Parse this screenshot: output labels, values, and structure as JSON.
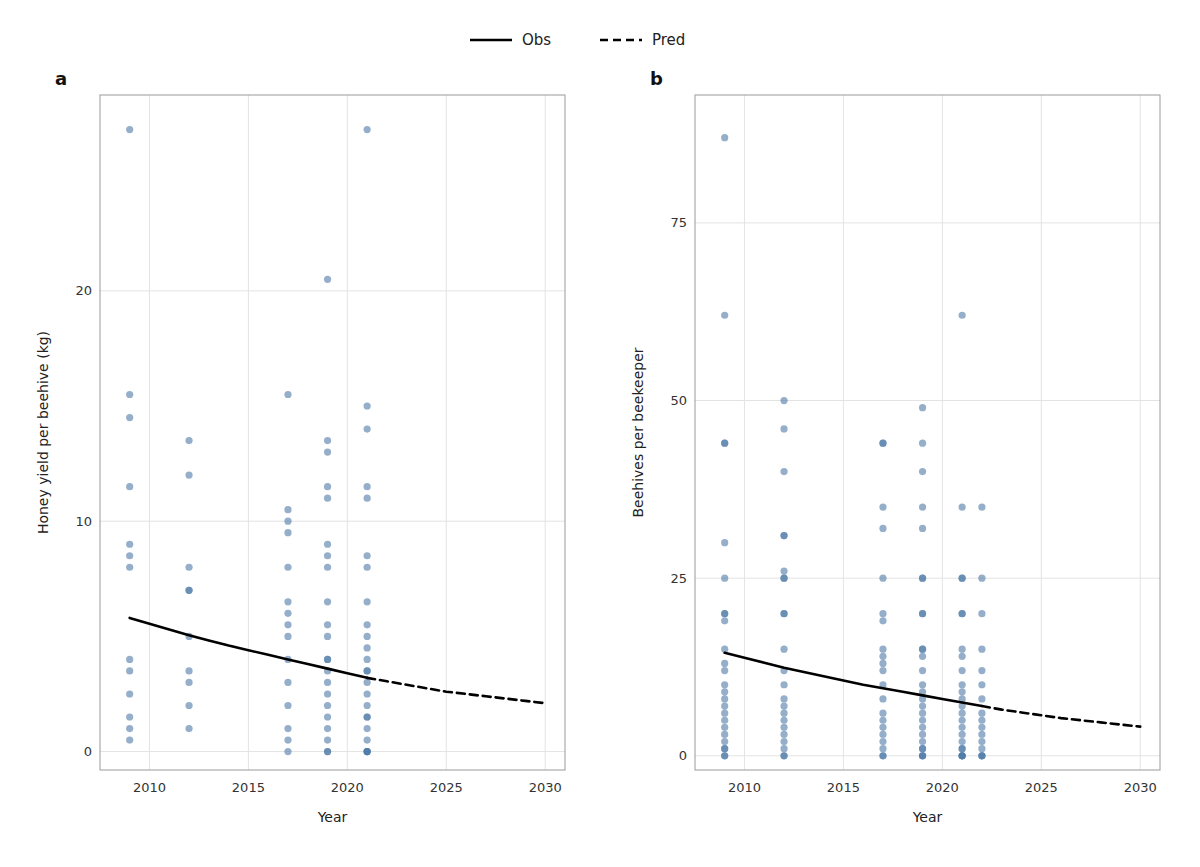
{
  "chart_data": [
    {
      "type": "scatter",
      "title": "a",
      "xlabel": "Year",
      "ylabel": "Honey yield per beehive (kg)",
      "xlim": [
        2007.5,
        2031
      ],
      "ylim": [
        -0.8,
        28.5
      ],
      "xticks": [
        2010,
        2015,
        2020,
        2025,
        2030
      ],
      "yticks": [
        0,
        10,
        20
      ],
      "grid": true,
      "legend": "top",
      "series": [
        {
          "type": "scatter",
          "x": [
            2009,
            2009,
            2009,
            2009,
            2009,
            2009,
            2009,
            2009,
            2009,
            2009,
            2009,
            2009,
            2009
          ],
          "values": [
            27,
            15.5,
            14.5,
            11.5,
            9.0,
            8.5,
            8.0,
            4.0,
            3.5,
            2.5,
            1.5,
            1.0,
            0.5
          ]
        },
        {
          "type": "scatter",
          "x": [
            2012,
            2012,
            2012,
            2012,
            2012,
            2012,
            2012,
            2012,
            2012,
            2012
          ],
          "values": [
            13.5,
            12.0,
            8.0,
            7.0,
            7.0,
            5.0,
            3.5,
            3.0,
            2.0,
            1.0
          ]
        },
        {
          "type": "scatter",
          "x": [
            2017,
            2017,
            2017,
            2017,
            2017,
            2017,
            2017,
            2017,
            2017,
            2017,
            2017,
            2017,
            2017,
            2017,
            2017
          ],
          "values": [
            15.5,
            10.5,
            10.0,
            9.5,
            8.0,
            6.5,
            6.0,
            5.5,
            5.0,
            4.0,
            3.0,
            2.0,
            1.0,
            0.5,
            0.0
          ]
        },
        {
          "type": "scatter",
          "x": [
            2019,
            2019,
            2019,
            2019,
            2019,
            2019,
            2019,
            2019,
            2019,
            2019,
            2019,
            2019,
            2019,
            2019,
            2019,
            2019,
            2019,
            2019,
            2019,
            2019,
            2019,
            2019
          ],
          "values": [
            20.5,
            13.5,
            13.0,
            11.5,
            11.0,
            9.0,
            8.5,
            8.0,
            6.5,
            5.5,
            5.0,
            4.0,
            4.0,
            3.5,
            3.0,
            2.5,
            2.0,
            1.5,
            1.0,
            0.5,
            0.0,
            0.0
          ]
        },
        {
          "type": "scatter",
          "x": [
            2021,
            2021,
            2021,
            2021,
            2021,
            2021,
            2021,
            2021,
            2021,
            2021,
            2021,
            2021,
            2021,
            2021,
            2021,
            2021,
            2021,
            2021,
            2021,
            2021,
            2021,
            2021,
            2021,
            2021,
            2021
          ],
          "values": [
            27.0,
            15.0,
            14.0,
            11.5,
            11.0,
            8.5,
            8.0,
            6.5,
            5.5,
            5.0,
            4.5,
            4.0,
            3.5,
            3.5,
            3.0,
            2.5,
            2.0,
            1.5,
            1.5,
            1.0,
            0.5,
            0.0,
            0.0,
            0.0,
            0.0
          ]
        },
        {
          "type": "line",
          "name": "Obs",
          "color": "#000000",
          "line_style": "solid",
          "x": [
            2009,
            2010,
            2011,
            2012,
            2013,
            2014,
            2015,
            2016,
            2017,
            2018,
            2019,
            2020,
            2021
          ],
          "values": [
            5.8,
            5.55,
            5.3,
            5.05,
            4.82,
            4.6,
            4.4,
            4.2,
            4.0,
            3.8,
            3.6,
            3.4,
            3.2
          ]
        },
        {
          "type": "line",
          "name": "Pred",
          "color": "#000000",
          "line_style": "dashed",
          "x": [
            2021,
            2022,
            2023,
            2024,
            2025,
            2026,
            2027,
            2028,
            2029,
            2030
          ],
          "values": [
            3.2,
            3.05,
            2.9,
            2.75,
            2.6,
            2.5,
            2.4,
            2.3,
            2.2,
            2.1
          ]
        }
      ]
    },
    {
      "type": "scatter",
      "title": "b",
      "xlabel": "Year",
      "ylabel": "Beehives per beekeeper",
      "xlim": [
        2007.5,
        2031
      ],
      "ylim": [
        -2,
        93
      ],
      "xticks": [
        2010,
        2015,
        2020,
        2025,
        2030
      ],
      "yticks": [
        0,
        25,
        50,
        75
      ],
      "grid": true,
      "series": [
        {
          "type": "scatter",
          "x": [
            2009,
            2009,
            2009,
            2009,
            2009,
            2009,
            2009,
            2009,
            2009,
            2009,
            2009,
            2009,
            2009,
            2009,
            2009,
            2009,
            2009,
            2009,
            2009,
            2009,
            2009,
            2009,
            2009,
            2009,
            2009
          ],
          "values": [
            87,
            62,
            44,
            44,
            30,
            25,
            20,
            20,
            19,
            15,
            13,
            12,
            10,
            9,
            8,
            7,
            6,
            5,
            4,
            3,
            2,
            1,
            1,
            0,
            0
          ]
        },
        {
          "type": "scatter",
          "x": [
            2012,
            2012,
            2012,
            2012,
            2012,
            2012,
            2012,
            2012,
            2012,
            2012,
            2012,
            2012,
            2012,
            2012,
            2012,
            2012,
            2012,
            2012,
            2012,
            2012,
            2012,
            2012,
            2012
          ],
          "values": [
            50,
            46,
            40,
            31,
            31,
            26,
            25,
            25,
            20,
            20,
            15,
            12,
            10,
            8,
            7,
            6,
            5,
            4,
            3,
            2,
            1,
            0,
            0
          ]
        },
        {
          "type": "scatter",
          "x": [
            2017,
            2017,
            2017,
            2017,
            2017,
            2017,
            2017,
            2017,
            2017,
            2017,
            2017,
            2017,
            2017,
            2017,
            2017,
            2017,
            2017,
            2017,
            2017,
            2017,
            2017
          ],
          "values": [
            44,
            44,
            35,
            32,
            25,
            20,
            19,
            15,
            14,
            13,
            12,
            10,
            8,
            6,
            5,
            4,
            3,
            2,
            1,
            0,
            0
          ]
        },
        {
          "type": "scatter",
          "x": [
            2019,
            2019,
            2019,
            2019,
            2019,
            2019,
            2019,
            2019,
            2019,
            2019,
            2019,
            2019,
            2019,
            2019,
            2019,
            2019,
            2019,
            2019,
            2019,
            2019,
            2019,
            2019,
            2019,
            2019,
            2019,
            2019,
            2019
          ],
          "values": [
            49,
            44,
            40,
            35,
            32,
            25,
            25,
            20,
            20,
            15,
            15,
            14,
            12,
            10,
            9,
            8,
            7,
            6,
            5,
            4,
            3,
            2,
            1,
            1,
            0,
            0,
            0
          ]
        },
        {
          "type": "scatter",
          "x": [
            2021,
            2021,
            2021,
            2021,
            2021,
            2021,
            2021,
            2021,
            2021,
            2021,
            2021,
            2021,
            2021,
            2021,
            2021,
            2021,
            2021,
            2021,
            2021,
            2021,
            2021,
            2021,
            2021,
            2021
          ],
          "values": [
            62,
            35,
            25,
            25,
            20,
            20,
            15,
            14,
            12,
            10,
            9,
            8,
            7,
            6,
            5,
            4,
            3,
            2,
            1,
            1,
            0,
            0,
            0,
            0
          ]
        },
        {
          "type": "scatter",
          "x": [
            2022,
            2022,
            2022,
            2022,
            2022,
            2022,
            2022,
            2022,
            2022,
            2022,
            2022,
            2022,
            2022,
            2022,
            2022,
            2022
          ],
          "values": [
            35,
            25,
            20,
            15,
            12,
            10,
            8,
            6,
            5,
            4,
            3,
            2,
            1,
            0,
            0,
            0
          ]
        },
        {
          "type": "line",
          "color": "#000000",
          "line_style": "solid",
          "x": [
            2009,
            2010,
            2011,
            2012,
            2013,
            2014,
            2015,
            2016,
            2017,
            2018,
            2019,
            2020,
            2021,
            2022
          ],
          "values": [
            14.5,
            13.8,
            13.1,
            12.4,
            11.8,
            11.2,
            10.6,
            10.0,
            9.5,
            9.0,
            8.5,
            8.0,
            7.5,
            7.0
          ]
        },
        {
          "type": "line",
          "color": "#000000",
          "line_style": "dashed",
          "x": [
            2022,
            2023,
            2024,
            2025,
            2026,
            2027,
            2028,
            2029,
            2030
          ],
          "values": [
            7.0,
            6.5,
            6.1,
            5.7,
            5.3,
            5.0,
            4.7,
            4.4,
            4.1
          ]
        }
      ]
    }
  ]
}
